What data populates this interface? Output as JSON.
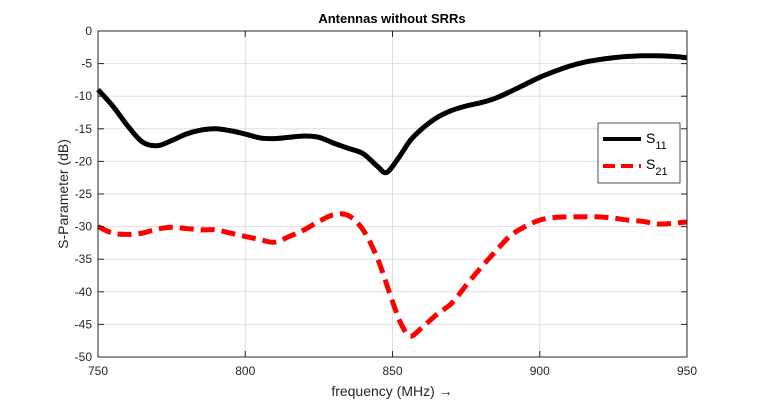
{
  "chart_data": {
    "type": "line",
    "title": "Antennas without SRRs",
    "xlabel": "frequency (MHz) →",
    "ylabel": "S-Parameter (dB)",
    "xlim": [
      750,
      950
    ],
    "ylim": [
      -50,
      0
    ],
    "xticks": [
      750,
      800,
      850,
      900,
      950
    ],
    "yticks": [
      0,
      -5,
      -10,
      -15,
      -20,
      -25,
      -30,
      -35,
      -40,
      -45,
      -50
    ],
    "grid": true,
    "legend_position": "right",
    "series": [
      {
        "name": "S11",
        "name_main": "S",
        "name_sub": "11",
        "color": "#000000",
        "dash": "solid",
        "x": [
          750,
          755,
          760,
          765,
          770,
          775,
          780,
          785,
          790,
          795,
          800,
          805,
          810,
          815,
          820,
          825,
          830,
          835,
          840,
          845,
          848,
          852,
          856,
          860,
          865,
          870,
          875,
          880,
          885,
          890,
          895,
          900,
          905,
          910,
          915,
          920,
          925,
          930,
          935,
          940,
          945,
          950
        ],
        "y": [
          -9,
          -11.5,
          -14.5,
          -17,
          -17.6,
          -16.8,
          -15.8,
          -15.2,
          -15,
          -15.3,
          -15.8,
          -16.4,
          -16.5,
          -16.3,
          -16.1,
          -16.3,
          -17.2,
          -18,
          -18.8,
          -20.8,
          -21.7,
          -19.5,
          -16.8,
          -15,
          -13.3,
          -12.2,
          -11.5,
          -11,
          -10.3,
          -9.3,
          -8.2,
          -7.1,
          -6.2,
          -5.4,
          -4.8,
          -4.4,
          -4.1,
          -3.9,
          -3.8,
          -3.8,
          -3.9,
          -4.1
        ]
      },
      {
        "name": "S21",
        "name_main": "S",
        "name_sub": "21",
        "color": "#ff0000",
        "dash": "dashed",
        "x": [
          750,
          755,
          760,
          765,
          770,
          775,
          780,
          785,
          790,
          795,
          800,
          805,
          810,
          815,
          820,
          825,
          830,
          835,
          840,
          845,
          850,
          853,
          856,
          860,
          865,
          870,
          875,
          880,
          885,
          890,
          895,
          900,
          905,
          910,
          915,
          920,
          925,
          930,
          935,
          940,
          945,
          950
        ],
        "y": [
          -30,
          -31,
          -31.2,
          -31,
          -30.4,
          -30.1,
          -30.3,
          -30.5,
          -30.5,
          -31,
          -31.5,
          -32,
          -32.4,
          -31.5,
          -30.5,
          -29.2,
          -28.2,
          -28.3,
          -30.5,
          -35,
          -41.5,
          -45,
          -46.8,
          -45.5,
          -43.5,
          -41.8,
          -39,
          -36.3,
          -33.8,
          -31.4,
          -30,
          -29,
          -28.6,
          -28.5,
          -28.5,
          -28.5,
          -28.7,
          -29,
          -29.2,
          -29.6,
          -29.5,
          -29.3
        ]
      }
    ]
  }
}
